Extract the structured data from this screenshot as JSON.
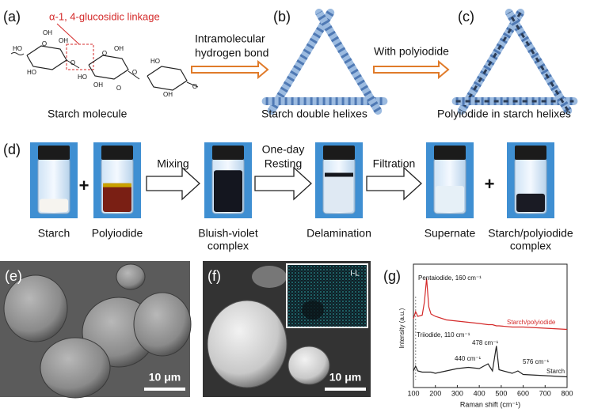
{
  "figure": {
    "a": {
      "label": "(a)",
      "annotation": "α-1, 4-glucosidic linkage",
      "caption": "Starch molecule",
      "atoms": [
        "HO",
        "O",
        "HO",
        "OH",
        "O",
        "OH",
        "O",
        "HO",
        "OH",
        "O",
        "OH",
        "O",
        "HO",
        "OH",
        "O"
      ]
    },
    "arrow1": [
      "Intramolecular",
      "hydrogen bond"
    ],
    "b": {
      "label": "(b)",
      "caption": "Starch double helixes"
    },
    "arrow2": "With polyiodide",
    "c": {
      "label": "(c)",
      "caption": "Polyiodide in starch helixes"
    },
    "d": {
      "label": "(d)",
      "vials": [
        [
          "Starch"
        ],
        [
          "Polyiodide"
        ],
        [
          "Bluish-violet",
          "complex"
        ],
        [
          "Delamination"
        ],
        [
          "Supernate"
        ],
        [
          "Starch/polyiodide",
          "complex"
        ]
      ],
      "steps": [
        [
          "Mixing"
        ],
        [
          "One-day",
          "Resting"
        ],
        [
          "Filtration"
        ]
      ],
      "plus_signs": [
        "+",
        "+"
      ]
    },
    "e": {
      "label": "(e)",
      "scale_bar": "10 μm"
    },
    "f": {
      "label": "(f)",
      "scale_bar": "10 μm",
      "inset": "I-L"
    }
  },
  "chart_data": {
    "type": "line",
    "label": "(g)",
    "x_label": "Raman shift (cm⁻¹)",
    "y_label": "Intensity (a.u.)",
    "x": [
      100,
      110,
      120,
      140,
      150,
      160,
      170,
      180,
      200,
      250,
      300,
      350,
      400,
      440,
      460,
      478,
      490,
      550,
      576,
      600,
      700,
      800
    ],
    "series": [
      {
        "name": "Starch/polyiodide",
        "color": "#d42a2a",
        "values": [
          58,
          64,
          60,
          61,
          72,
          92,
          68,
          62,
          60,
          57,
          56,
          55,
          54,
          53,
          53,
          52,
          52,
          51,
          51,
          51,
          50,
          49
        ]
      },
      {
        "name": "Starch",
        "color": "#222222",
        "values": [
          14,
          18,
          14,
          13,
          13,
          13,
          13,
          13,
          12,
          14,
          16,
          17,
          16,
          20,
          14,
          35,
          15,
          12,
          14,
          11,
          10,
          9
        ]
      }
    ],
    "annotations": [
      "Pentaiodide, 160 cm⁻¹",
      "Triiodide, 110 cm⁻¹",
      "478 cm⁻¹",
      "440 cm⁻¹",
      "576 cm⁻¹"
    ],
    "xlim": [
      100,
      800
    ],
    "xticks": [
      100,
      200,
      300,
      400,
      500,
      600,
      700,
      800
    ],
    "ylim": [
      0,
      100
    ]
  }
}
